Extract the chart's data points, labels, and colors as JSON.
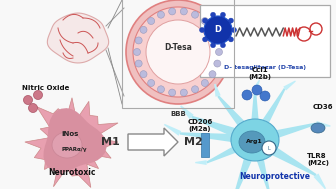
{
  "bg_color": "#f8f8f8",
  "pink_outer": "#e8a0b0",
  "pink_mid": "#d88090",
  "pink_inner": "#cc8888",
  "pink_nucleus": "#c07070",
  "pink_spike": "#d09090",
  "cyan_body": "#7dd4e4",
  "cyan_branch": "#a8e4f0",
  "cyan_nucleus": "#5599bb",
  "cyan_light": "#c0eef8",
  "blue_dot": "#4477cc",
  "blue_dend": "#1133aa",
  "red_chem": "#cc3333",
  "gray_chain": "#555555",
  "bbb_pink": "#f0c0c0",
  "bbb_ring": "#e08080",
  "bbb_dot": "#9999cc",
  "white": "#ffffff",
  "black": "#111111",
  "dark_gray": "#333333",
  "arrow_fill": "#ffffff",
  "arrow_edge": "#888888",
  "brain_fill": "#f5e8e8",
  "brain_vessel": "#cc5555",
  "label_neurotoxic": "Neurotoxic",
  "label_neuroprotective": "Neuroprotective",
  "label_nitric_oxide": "Nitric Oxide",
  "label_inos": "iNos",
  "label_ppar": "PPARα/γ",
  "label_bbb": "BBB",
  "label_dtesa_inside": "D-Tesa",
  "label_dtesa_caption": "D- tesaglitazar (D-Tesa)",
  "label_ccl1": "Ccl1\n(M2b)",
  "label_cd206": "CD206\n(M2a)",
  "label_arg1": "Arg1",
  "label_tlr8": "TLR8\n(M2c)",
  "label_cd36": "CD36"
}
